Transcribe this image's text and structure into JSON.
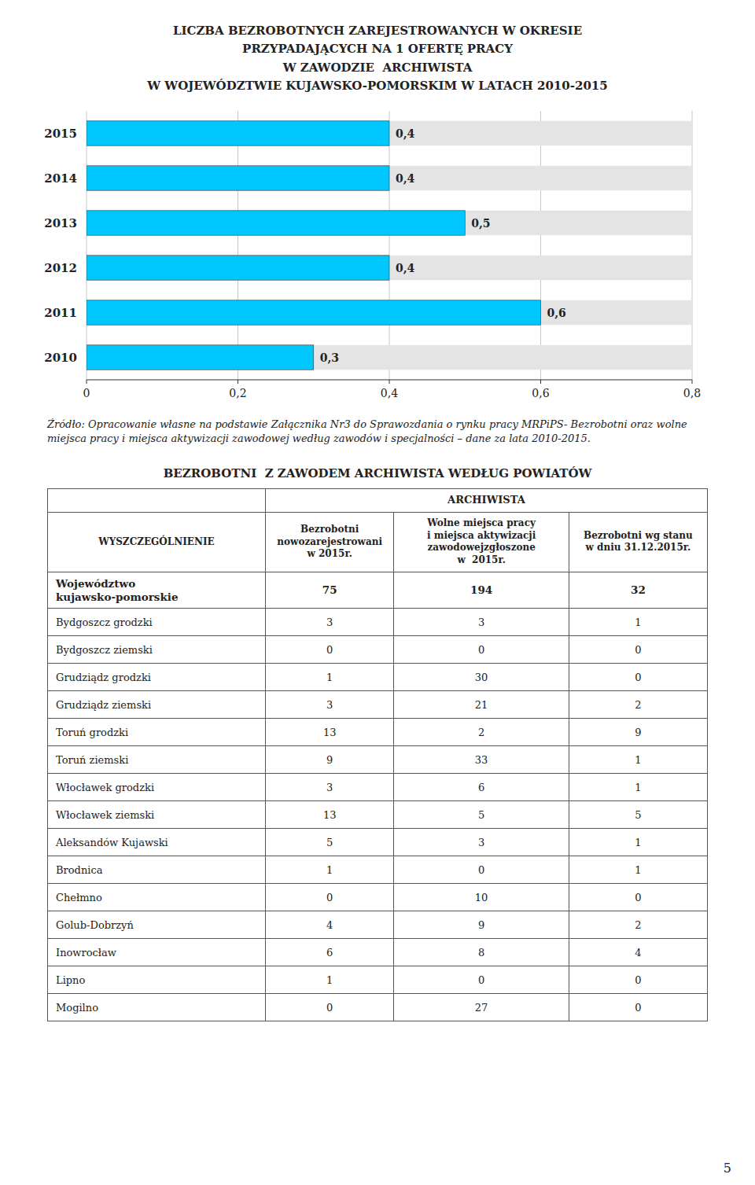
{
  "chart_data": {
    "type": "bar",
    "orientation": "horizontal",
    "title": "LICZBA BEZROBOTNYCH ZAREJESTROWANYCH W OKRESIE\nPRZYPADAJĄCYCH NA 1 OFERTĘ PRACY\nW ZAWODZIE  ARCHIWISTA\nW WOJEWÓDZTWIE KUJAWSKO-POMORSKIM W LATACH 2010-2015",
    "categories": [
      "2015",
      "2014",
      "2013",
      "2012",
      "2011",
      "2010"
    ],
    "values": [
      0.4,
      0.4,
      0.5,
      0.4,
      0.6,
      0.3
    ],
    "value_labels": [
      "0,4",
      "0,4",
      "0,5",
      "0,4",
      "0,6",
      "0,3"
    ],
    "data_labels": true,
    "color": "#00C8FF",
    "xlim": [
      0,
      0.8
    ],
    "xticks": [
      0,
      {
        "value": 0.2,
        "label": "0,2"
      },
      {
        "value": 0.4,
        "label": "0,4"
      },
      {
        "value": 0.6,
        "label": "0,6"
      },
      {
        "value": 0.8,
        "label": "0,8"
      }
    ],
    "grid": true,
    "source": "Źródło: Opracowanie własne na podstawie Załącznika Nr3 do Sprawozdania o rynku pracy MRPiPS- Bezrobotni oraz wolne\nmiejsca pracy i miejsca aktywizacji zawodowej według zawodów i specjalności – dane za lata 2010-2015.",
    "table": {
      "title": "BEZROBOTNI  Z ZAWODEM ARCHIWISTA WEDŁUG POWIATÓW",
      "group_header": "ARCHIWISTA",
      "columns": [
        "WYSZCZEGÓLNIENIE",
        "Bezrobotni\nnowozarejestrowani\nw 2015r.",
        "Wolne miejsca pracy\ni miejsca aktywizacji\nzawodowejzgłoszone\nw  2015r.",
        "Bezrobotni wg stanu\nw dniu 31.12.2015r."
      ],
      "rows": [
        [
          "Województwo\nkujawsko-pomorskie",
          "75",
          "194",
          "32"
        ],
        [
          "Bydgoszcz grodzki",
          "3",
          "3",
          "1"
        ],
        [
          "Bydgoszcz ziemski",
          "0",
          "0",
          "0"
        ],
        [
          "Grudziądz grodzki",
          "1",
          "30",
          "0"
        ],
        [
          "Grudziądz ziemski",
          "3",
          "21",
          "2"
        ],
        [
          "Toruń grodzki",
          "13",
          "2",
          "9"
        ],
        [
          "Toruń ziemski",
          "9",
          "33",
          "1"
        ],
        [
          "Włocławek grodzki",
          "3",
          "6",
          "1"
        ],
        [
          "Włocławek ziemski",
          "13",
          "5",
          "5"
        ],
        [
          "Aleksandów Kujawski",
          "5",
          "3",
          "1"
        ],
        [
          "Brodnica",
          "1",
          "0",
          "1"
        ],
        [
          "Chełmno",
          "0",
          "10",
          "0"
        ],
        [
          "Golub-Dobrzyń",
          "4",
          "9",
          "2"
        ],
        [
          "Inowrocław",
          "6",
          "8",
          "4"
        ],
        [
          "Lipno",
          "1",
          "0",
          "0"
        ],
        [
          "Mogilno",
          "0",
          "27",
          "0"
        ]
      ]
    },
    "page_number": "5"
  }
}
